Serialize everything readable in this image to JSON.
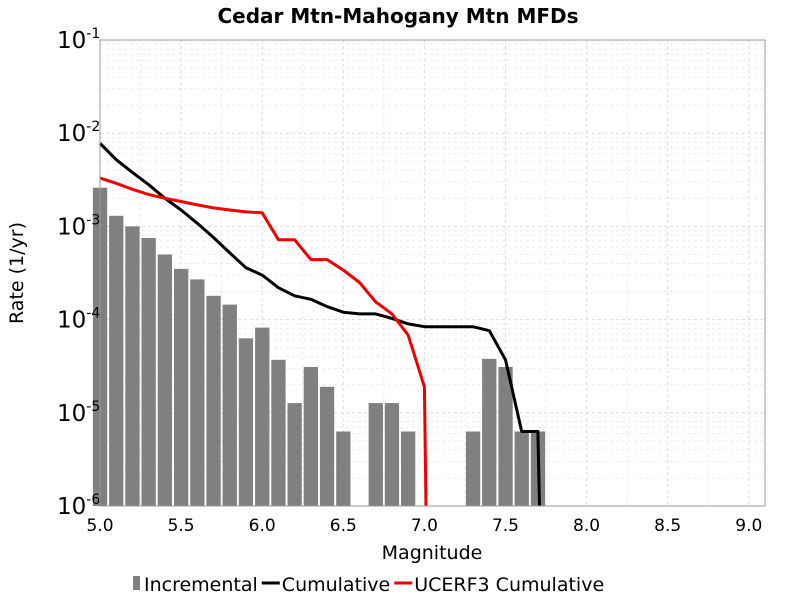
{
  "chart_data": {
    "type": "bar",
    "title": "Cedar Mtn-Mahogany Mtn MFDs",
    "xlabel": "Magnitude",
    "ylabel": "Rate (1/yr)",
    "xlim": [
      5.0,
      9.1
    ],
    "ylim": [
      1e-06,
      0.1
    ],
    "yscale": "log",
    "grid": true,
    "legend_position": "bottom",
    "x_ticks": [
      "5.0",
      "5.5",
      "6.0",
      "6.5",
      "7.0",
      "7.5",
      "8.0",
      "8.5",
      "9.0"
    ],
    "y_ticks": [
      {
        "base": "10",
        "exp": "-6"
      },
      {
        "base": "10",
        "exp": "-5"
      },
      {
        "base": "10",
        "exp": "-4"
      },
      {
        "base": "10",
        "exp": "-3"
      },
      {
        "base": "10",
        "exp": "-2"
      },
      {
        "base": "10",
        "exp": "-1"
      }
    ],
    "series": [
      {
        "name": "Incremental",
        "kind": "bar",
        "color": "#808080",
        "x": [
          5.0,
          5.1,
          5.2,
          5.3,
          5.4,
          5.5,
          5.6,
          5.7,
          5.8,
          5.9,
          6.0,
          6.1,
          6.2,
          6.3,
          6.4,
          6.5,
          6.6,
          6.7,
          6.8,
          6.9,
          7.0,
          7.1,
          7.2,
          7.3,
          7.4,
          7.5,
          7.6,
          7.7
        ],
        "values": [
          0.0026,
          0.0013,
          0.001,
          0.00075,
          0.0005,
          0.00035,
          0.00027,
          0.00018,
          0.000145,
          6.3e-05,
          8.2e-05,
          3.7e-05,
          1.27e-05,
          3.1e-05,
          1.9e-05,
          6.3e-06,
          0,
          1.27e-05,
          1.27e-05,
          6.3e-06,
          0,
          0,
          0,
          6.3e-06,
          3.8e-05,
          3.1e-05,
          6.3e-06,
          6.3e-06
        ]
      },
      {
        "name": "Cumulative",
        "kind": "line",
        "color": "#000000",
        "x": [
          5.0,
          5.1,
          5.2,
          5.3,
          5.4,
          5.5,
          5.6,
          5.7,
          5.8,
          5.9,
          6.0,
          6.1,
          6.2,
          6.3,
          6.4,
          6.5,
          6.6,
          6.7,
          6.8,
          6.9,
          7.0,
          7.1,
          7.2,
          7.3,
          7.4,
          7.5,
          7.6,
          7.7,
          7.71
        ],
        "values": [
          0.0078,
          0.0052,
          0.0038,
          0.0028,
          0.002,
          0.0015,
          0.00108,
          0.00076,
          0.00052,
          0.00036,
          0.0003,
          0.00022,
          0.00018,
          0.000165,
          0.000138,
          0.00012,
          0.000115,
          0.000115,
          0.000103,
          9e-05,
          8.4e-05,
          8.4e-05,
          8.4e-05,
          8.4e-05,
          7.6e-05,
          3.7e-05,
          6.3e-06,
          6.3e-06,
          1e-06
        ]
      },
      {
        "name": "UCERF3 Cumulative",
        "kind": "line",
        "color": "#ee0000",
        "x": [
          5.0,
          5.1,
          5.2,
          5.3,
          5.4,
          5.5,
          5.6,
          5.7,
          5.8,
          5.9,
          6.0,
          6.1,
          6.2,
          6.3,
          6.4,
          6.5,
          6.6,
          6.7,
          6.8,
          6.9,
          7.0,
          7.01
        ],
        "values": [
          0.0033,
          0.0029,
          0.0025,
          0.0022,
          0.002,
          0.00185,
          0.0017,
          0.00158,
          0.0015,
          0.00143,
          0.0014,
          0.00072,
          0.00072,
          0.00044,
          0.00044,
          0.00034,
          0.00025,
          0.000155,
          0.000115,
          6.8e-05,
          1.9e-05,
          1e-06
        ]
      }
    ]
  }
}
